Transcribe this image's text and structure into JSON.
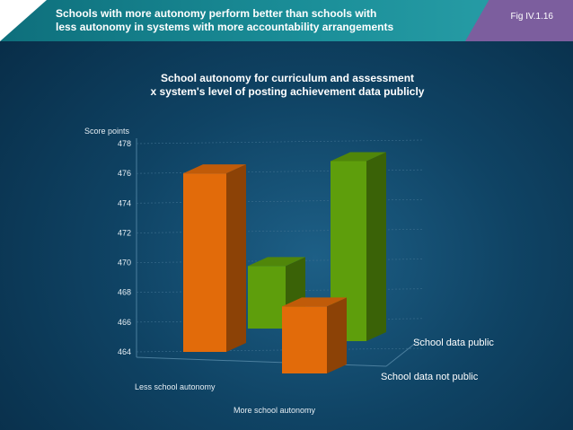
{
  "header": {
    "title_line1": "Schools with more autonomy perform better than schools with",
    "title_line2": "less autonomy in systems with more accountability arrangements",
    "fig_label": "Fig IV.1.16"
  },
  "chart_data": {
    "type": "bar",
    "title_line1": "School autonomy for curriculum and assessment",
    "title_line2": "x  system's level of posting achievement data publicly",
    "ylabel": "Score points",
    "ylim": [
      464,
      478
    ],
    "yticks": [
      464,
      466,
      468,
      470,
      472,
      474,
      476,
      478
    ],
    "categories": [
      "Less school autonomy",
      "More school autonomy"
    ],
    "series": [
      {
        "name": "School data public",
        "values": [
          468.2,
          476.1
        ]
      },
      {
        "name": "School data not public",
        "values": [
          476.0,
          468.5
        ]
      }
    ],
    "colors": {
      "School data public": "#5e9e0c",
      "School data not public": "#e26b0a"
    },
    "grid": true
  }
}
